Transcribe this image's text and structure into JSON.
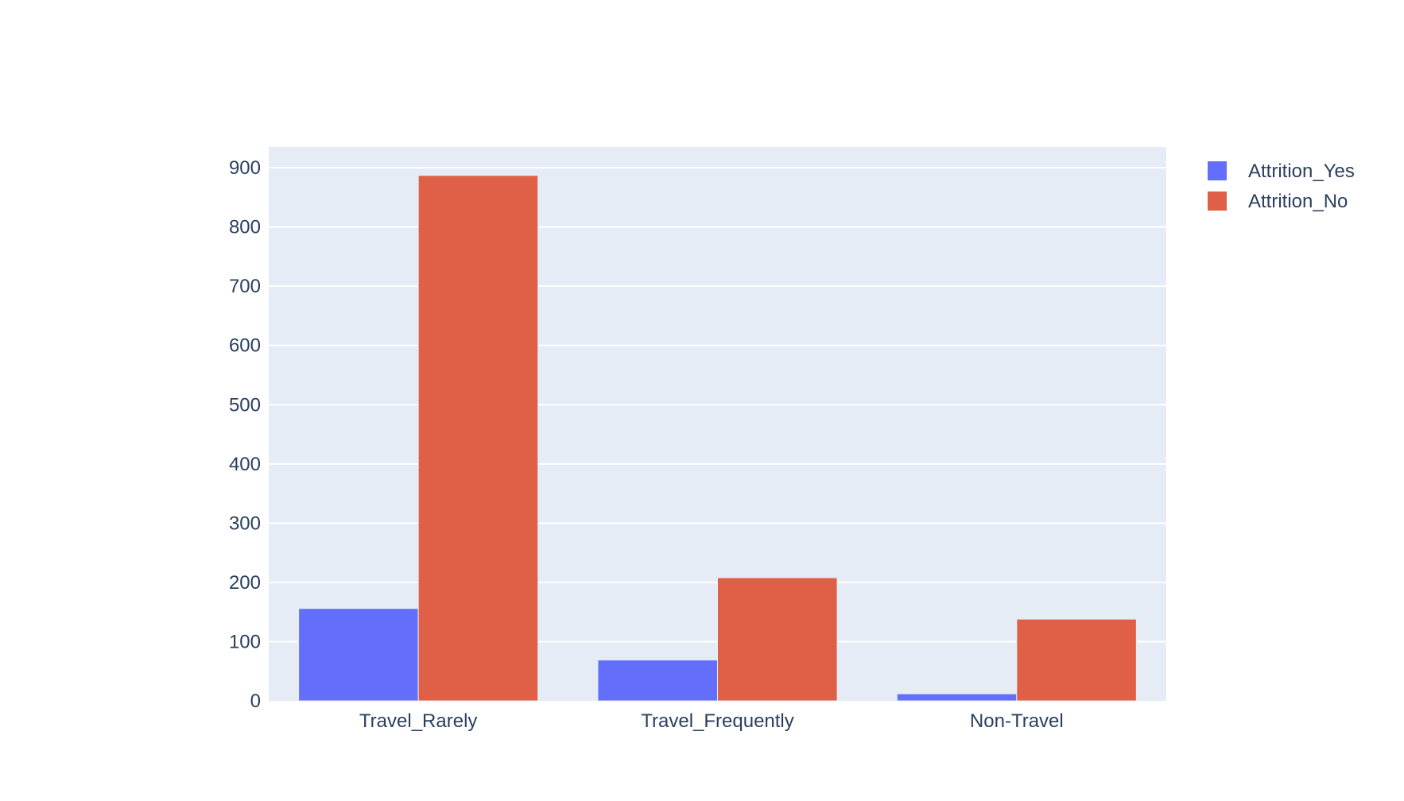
{
  "chart_data": {
    "type": "bar",
    "barmode": "group",
    "categories": [
      "Travel_Rarely",
      "Travel_Frequently",
      "Non-Travel"
    ],
    "series": [
      {
        "name": "Attrition_Yes",
        "values": [
          156,
          69,
          12
        ],
        "color": "#636efa"
      },
      {
        "name": "Attrition_No",
        "values": [
          887,
          208,
          138
        ],
        "color": "#e05f47"
      }
    ],
    "title": "",
    "xlabel": "",
    "ylabel": "",
    "ylim": [
      0,
      935
    ],
    "yticks": [
      0,
      100,
      200,
      300,
      400,
      500,
      600,
      700,
      800,
      900
    ],
    "grid": true,
    "legend_position": "top-right",
    "plot_background": "#e5ecf6",
    "text_color": "#2a3f5f"
  }
}
